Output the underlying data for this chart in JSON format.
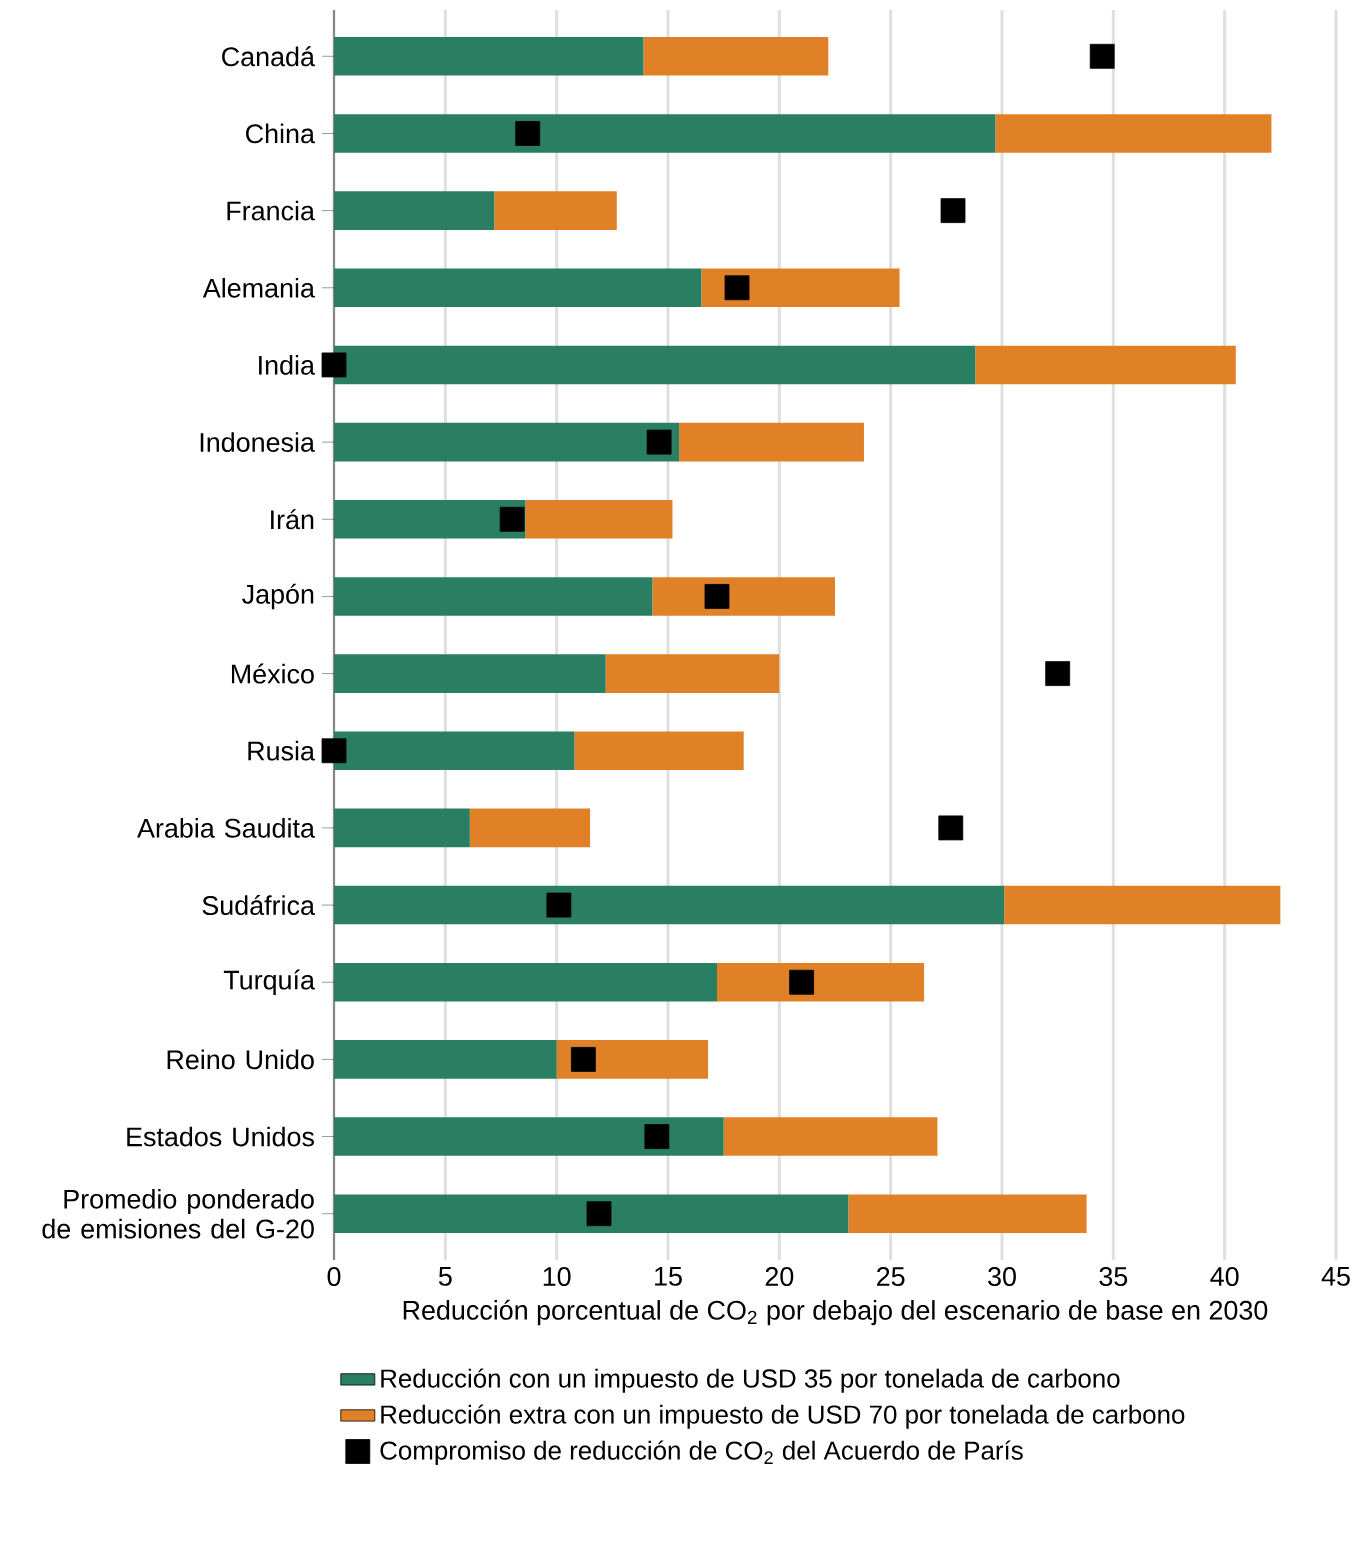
{
  "chart_data": {
    "type": "bar",
    "orientation": "horizontal",
    "stacked": true,
    "categories": [
      "Canadá",
      "China",
      "Francia",
      "Alemania",
      "India",
      "Indonesia",
      "Irán",
      "Japón",
      "México",
      "Rusia",
      "Arabia Saudita",
      "Sudáfrica",
      "Turquía",
      "Reino Unido",
      "Estados Unidos",
      "Promedio ponderado de emisiones del G-20"
    ],
    "xlabel": "Reducción porcentual de CO$_{2}$ por debajo del escenario de base en 2030",
    "xlim": [
      0,
      45
    ],
    "xticks": [
      0,
      5,
      10,
      15,
      20,
      25,
      30,
      35,
      40,
      45
    ],
    "grid": "x",
    "legend": "bottom",
    "marker": "square",
    "series": [
      {
        "name": "Reducción con un impuesto de USD 35 por tonelada de carbono",
        "color": "#2a7f62",
        "values": [
          13.9,
          29.7,
          7.2,
          16.5,
          28.8,
          15.5,
          8.6,
          14.3,
          12.2,
          10.8,
          6.1,
          30.1,
          17.2,
          10.0,
          17.5,
          23.1
        ]
      },
      {
        "name": "Reducción extra con un impuesto de USD 70 por tonelada de carbono",
        "color": "#e08127",
        "values": [
          8.3,
          12.4,
          5.5,
          8.9,
          11.7,
          8.3,
          6.6,
          8.2,
          7.8,
          7.6,
          5.4,
          12.4,
          9.3,
          6.8,
          9.6,
          10.7
        ]
      },
      {
        "name": "Compromiso de reducción de CO$_{2}$ del Acuerdo de París",
        "type": "scatter",
        "color": "#000000",
        "values": [
          34.5,
          8.7,
          27.8,
          18.1,
          0,
          14.6,
          8.0,
          17.2,
          32.5,
          0,
          27.7,
          10.1,
          21.0,
          11.2,
          14.5,
          11.9
        ]
      }
    ]
  }
}
